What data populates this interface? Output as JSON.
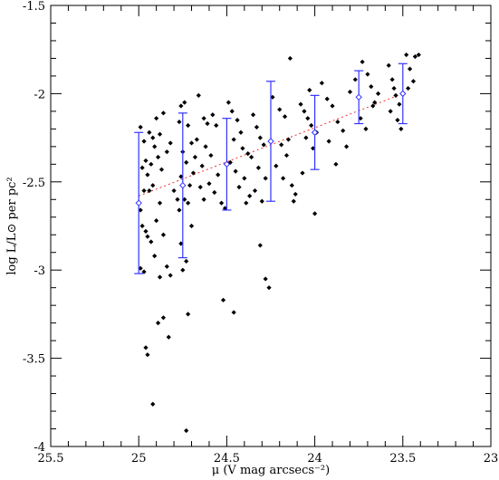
{
  "chart_data": {
    "type": "scatter",
    "title": "",
    "xlabel": "μ (V mag arcsecs⁻²)",
    "ylabel": "log L/L⊙ per pc²",
    "xlim": [
      25.5,
      23
    ],
    "ylim": [
      -4,
      -1.5
    ],
    "x_ticks": [
      "25.5",
      "25",
      "24.5",
      "24",
      "23.5",
      "23"
    ],
    "y_ticks": [
      "-1.5",
      "-2",
      "-2.5",
      "-3",
      "-3.5",
      "-4"
    ],
    "x_tick_values": [
      25.5,
      25,
      24.5,
      24,
      23.5,
      23
    ],
    "y_tick_values": [
      -1.5,
      -2,
      -2.5,
      -3,
      -3.5,
      -4
    ],
    "x_minor_step": 0.1,
    "y_minor_step": 0.1,
    "ticks_inward_all_sides": true,
    "grid": false,
    "series": [
      {
        "points": [
          [
            24.99,
            -2.19
          ],
          [
            24.97,
            -2.27
          ],
          [
            24.98,
            -2.42
          ],
          [
            24.96,
            -2.38
          ],
          [
            24.95,
            -2.46
          ],
          [
            24.97,
            -2.55
          ],
          [
            24.99,
            -2.66
          ],
          [
            24.98,
            -2.75
          ],
          [
            24.96,
            -2.78
          ],
          [
            24.99,
            -2.99
          ],
          [
            24.97,
            -3.01
          ],
          [
            24.95,
            -2.81
          ],
          [
            24.94,
            -2.22
          ],
          [
            24.92,
            -2.25
          ],
          [
            24.9,
            -2.14
          ],
          [
            24.88,
            -2.23
          ],
          [
            24.86,
            -2.11
          ],
          [
            24.91,
            -2.3
          ],
          [
            24.89,
            -2.36
          ],
          [
            24.93,
            -2.4
          ],
          [
            24.87,
            -2.43
          ],
          [
            24.84,
            -2.33
          ],
          [
            24.82,
            -2.28
          ],
          [
            24.92,
            -2.52
          ],
          [
            24.94,
            -2.55
          ],
          [
            24.88,
            -2.62
          ],
          [
            24.9,
            -2.72
          ],
          [
            24.86,
            -2.8
          ],
          [
            24.93,
            -2.84
          ],
          [
            24.91,
            -2.92
          ],
          [
            24.84,
            -2.98
          ],
          [
            24.8,
            -2.55
          ],
          [
            24.78,
            -2.6
          ],
          [
            24.96,
            -3.44
          ],
          [
            24.95,
            -3.48
          ],
          [
            24.92,
            -3.76
          ],
          [
            24.89,
            -3.3
          ],
          [
            24.86,
            -3.27
          ],
          [
            24.83,
            -3.38
          ],
          [
            24.88,
            -3.04
          ],
          [
            24.82,
            -3.03
          ],
          [
            24.76,
            -2.07
          ],
          [
            24.74,
            -2.05
          ],
          [
            24.77,
            -2.16
          ],
          [
            24.72,
            -2.18
          ],
          [
            24.7,
            -2.28
          ],
          [
            24.75,
            -2.33
          ],
          [
            24.73,
            -2.39
          ],
          [
            24.69,
            -2.45
          ],
          [
            24.76,
            -2.47
          ],
          [
            24.71,
            -2.52
          ],
          [
            24.74,
            -2.6
          ],
          [
            24.72,
            -2.62
          ],
          [
            24.77,
            -2.66
          ],
          [
            24.7,
            -2.75
          ],
          [
            24.76,
            -2.85
          ],
          [
            24.73,
            -2.95
          ],
          [
            24.75,
            -3.0
          ],
          [
            24.73,
            -3.91
          ],
          [
            24.72,
            -3.25
          ],
          [
            24.66,
            -2.01
          ],
          [
            24.63,
            -2.14
          ],
          [
            24.61,
            -2.17
          ],
          [
            24.58,
            -2.12
          ],
          [
            24.56,
            -2.18
          ],
          [
            24.67,
            -2.26
          ],
          [
            24.62,
            -2.3
          ],
          [
            24.59,
            -2.35
          ],
          [
            24.64,
            -2.41
          ],
          [
            24.55,
            -2.46
          ],
          [
            24.6,
            -2.51
          ],
          [
            24.57,
            -2.56
          ],
          [
            24.63,
            -2.6
          ],
          [
            24.53,
            -2.62
          ],
          [
            24.51,
            -2.65
          ],
          [
            24.68,
            -2.36
          ],
          [
            24.65,
            -2.53
          ],
          [
            24.49,
            -2.05
          ],
          [
            24.47,
            -2.1
          ],
          [
            24.44,
            -2.15
          ],
          [
            24.42,
            -2.22
          ],
          [
            24.46,
            -2.26
          ],
          [
            24.41,
            -2.31
          ],
          [
            24.38,
            -2.34
          ],
          [
            24.48,
            -2.39
          ],
          [
            24.45,
            -2.44
          ],
          [
            24.4,
            -2.48
          ],
          [
            24.43,
            -2.53
          ],
          [
            24.37,
            -2.58
          ],
          [
            24.39,
            -2.62
          ],
          [
            24.52,
            -3.17
          ],
          [
            24.46,
            -3.24
          ],
          [
            24.35,
            -2.12
          ],
          [
            24.33,
            -2.19
          ],
          [
            24.31,
            -2.25
          ],
          [
            24.29,
            -2.29
          ],
          [
            24.36,
            -2.36
          ],
          [
            24.32,
            -2.42
          ],
          [
            24.28,
            -2.48
          ],
          [
            24.34,
            -2.55
          ],
          [
            24.3,
            -2.61
          ],
          [
            24.31,
            -2.86
          ],
          [
            24.28,
            -3.05
          ],
          [
            24.26,
            -3.1
          ],
          [
            24.24,
            -2.02
          ],
          [
            24.2,
            -2.09
          ],
          [
            24.17,
            -2.13
          ],
          [
            24.15,
            -2.26
          ],
          [
            24.19,
            -2.29
          ],
          [
            24.16,
            -2.35
          ],
          [
            24.22,
            -2.41
          ],
          [
            24.18,
            -2.48
          ],
          [
            24.13,
            -2.52
          ],
          [
            24.11,
            -2.57
          ],
          [
            24.14,
            -1.8
          ],
          [
            24.12,
            -2.61
          ],
          [
            24.08,
            -2.06
          ],
          [
            24.06,
            -2.1
          ],
          [
            24.04,
            -2.14
          ],
          [
            24.02,
            -2.18
          ],
          [
            24.05,
            -2.25
          ],
          [
            24.01,
            -2.31
          ],
          [
            23.99,
            -2.22
          ],
          [
            24.07,
            -2.45
          ],
          [
            24.03,
            -1.98
          ],
          [
            24.0,
            -2.68
          ],
          [
            23.96,
            -1.94
          ],
          [
            23.93,
            -2.03
          ],
          [
            23.9,
            -2.07
          ],
          [
            23.87,
            -2.16
          ],
          [
            23.84,
            -2.21
          ],
          [
            23.92,
            -2.27
          ],
          [
            23.88,
            -2.4
          ],
          [
            23.82,
            -2.3
          ],
          [
            23.8,
            -1.99
          ],
          [
            23.77,
            -1.92
          ],
          [
            23.73,
            -1.82
          ],
          [
            23.7,
            -1.89
          ],
          [
            23.68,
            -1.96
          ],
          [
            23.66,
            -2.05
          ],
          [
            23.74,
            -2.14
          ],
          [
            23.71,
            -2.2
          ],
          [
            23.67,
            -2.07
          ],
          [
            23.64,
            -2.0
          ],
          [
            23.58,
            -1.84
          ],
          [
            23.56,
            -1.92
          ],
          [
            23.54,
            -2.01
          ],
          [
            23.52,
            -2.06
          ],
          [
            23.57,
            -2.1
          ],
          [
            23.53,
            -2.15
          ],
          [
            23.51,
            -2.2
          ],
          [
            23.55,
            -1.97
          ],
          [
            23.48,
            -1.78
          ],
          [
            23.46,
            -1.86
          ],
          [
            23.44,
            -1.93
          ],
          [
            23.43,
            -1.79
          ],
          [
            23.41,
            -1.78
          ],
          [
            23.47,
            -1.97
          ]
        ]
      },
      {
        "errorbars": [
          {
            "x": 25.0,
            "y": -2.62,
            "low": -3.02,
            "high": -2.22
          },
          {
            "x": 24.75,
            "y": -2.52,
            "low": -2.93,
            "high": -2.11
          },
          {
            "x": 24.5,
            "y": -2.4,
            "low": -2.66,
            "high": -2.14
          },
          {
            "x": 24.25,
            "y": -2.27,
            "low": -2.61,
            "high": -1.93
          },
          {
            "x": 24.0,
            "y": -2.22,
            "low": -2.43,
            "high": -2.01
          },
          {
            "x": 23.75,
            "y": -2.02,
            "low": -2.17,
            "high": -1.87
          },
          {
            "x": 23.5,
            "y": -2.0,
            "low": -2.17,
            "high": -1.83
          }
        ]
      },
      {
        "fit_line": {
          "x": [
            25.0,
            23.5
          ],
          "y": [
            -2.58,
            -2.0
          ]
        }
      }
    ],
    "colors": {
      "points": "#000000",
      "errorbars": "#3333ff",
      "fit_line": "#ee3333",
      "axes": "#000000",
      "background": "#ffffff"
    }
  }
}
